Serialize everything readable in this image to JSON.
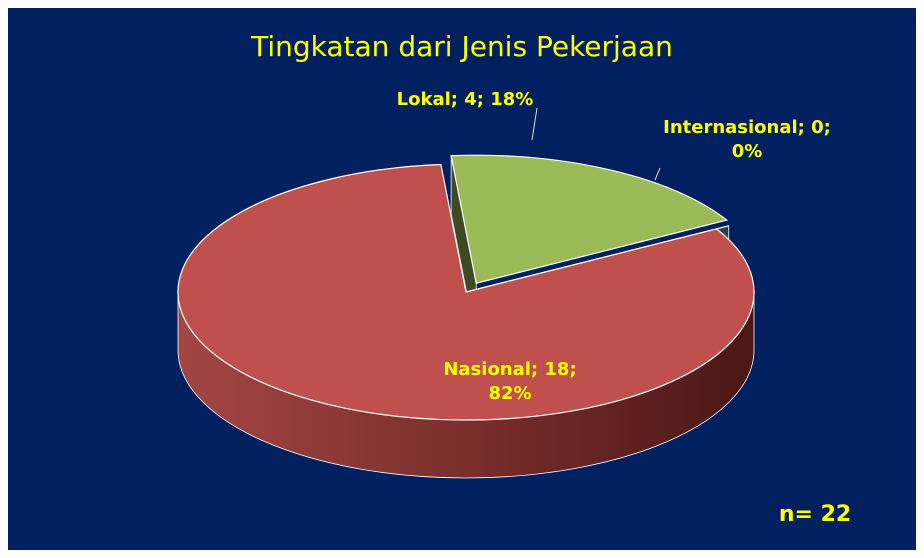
{
  "chart_data": {
    "type": "pie",
    "title": "Tingkatan dari Jenis Pekerjaan",
    "values": [
      4,
      0,
      18
    ],
    "value_labels": [
      "Lokal; 4; 18%",
      "Internasional; 0; 0%",
      "Nasional; 18; 82%"
    ],
    "colors": [
      "#9bbb59",
      "#4f81bd",
      "#c0504d"
    ],
    "annotation": "n= 22"
  }
}
